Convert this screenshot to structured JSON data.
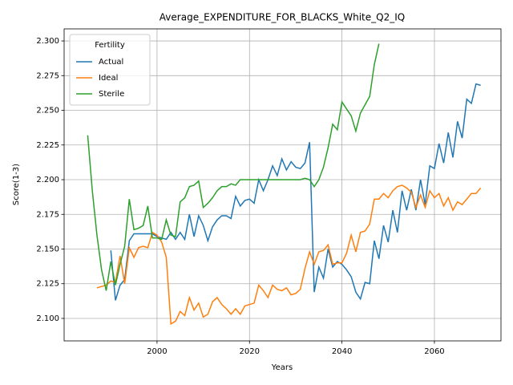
{
  "chart_data": {
    "type": "line",
    "title": "Average_EXPENDITURE_FOR_BLACKS_White_Q2_IQ",
    "x_label": "Years",
    "y_label": "Score(1-3)",
    "legend_title": "Fertility",
    "legend_position": "upper left",
    "grid": true,
    "x": [
      1985,
      1986,
      1987,
      1988,
      1989,
      1990,
      1991,
      1992,
      1993,
      1994,
      1995,
      1996,
      1997,
      1998,
      1999,
      2000,
      2001,
      2002,
      2003,
      2004,
      2005,
      2006,
      2007,
      2008,
      2009,
      2010,
      2011,
      2012,
      2013,
      2014,
      2015,
      2016,
      2017,
      2018,
      2019,
      2020,
      2021,
      2022,
      2023,
      2024,
      2025,
      2026,
      2027,
      2028,
      2029,
      2030,
      2031,
      2032,
      2033,
      2034,
      2035,
      2036,
      2037,
      2038,
      2039,
      2040,
      2041,
      2042,
      2043,
      2044,
      2045,
      2046,
      2047,
      2048,
      2049,
      2050,
      2051,
      2052,
      2053,
      2054,
      2055,
      2056,
      2057,
      2058,
      2059,
      2060,
      2061,
      2062,
      2063,
      2064,
      2065,
      2066,
      2067,
      2068,
      2069,
      2070
    ],
    "series": [
      {
        "name": "Actual",
        "color": "#1f77b4",
        "values": [
          null,
          null,
          null,
          null,
          null,
          2.149,
          2.113,
          2.124,
          2.128,
          2.156,
          2.161,
          2.161,
          2.161,
          2.161,
          2.161,
          2.159,
          2.158,
          2.157,
          2.162,
          2.157,
          2.162,
          2.157,
          2.175,
          2.159,
          2.174,
          2.167,
          2.156,
          2.166,
          2.171,
          2.174,
          2.174,
          2.172,
          2.188,
          2.181,
          2.185,
          2.186,
          2.183,
          2.2,
          2.192,
          2.2,
          2.21,
          2.203,
          2.215,
          2.207,
          2.213,
          2.209,
          2.208,
          2.212,
          2.227,
          2.119,
          2.137,
          2.129,
          2.15,
          2.137,
          2.141,
          2.139,
          2.135,
          2.13,
          2.119,
          2.114,
          2.126,
          2.125,
          2.156,
          2.143,
          2.167,
          2.155,
          2.178,
          2.162,
          2.192,
          2.178,
          2.193,
          2.178,
          2.2,
          2.182,
          2.21,
          2.208,
          2.226,
          2.212,
          2.234,
          2.216,
          2.242,
          2.23,
          2.258,
          2.255,
          2.269,
          2.268
        ]
      },
      {
        "name": "Ideal",
        "color": "#ff7f0e",
        "values": [
          null,
          null,
          2.122,
          2.123,
          2.124,
          2.127,
          2.126,
          2.145,
          2.125,
          2.151,
          2.144,
          2.151,
          2.152,
          2.151,
          2.162,
          2.16,
          2.155,
          2.144,
          2.096,
          2.098,
          2.105,
          2.102,
          2.115,
          2.106,
          2.111,
          2.101,
          2.103,
          2.112,
          2.115,
          2.11,
          2.107,
          2.103,
          2.107,
          2.103,
          2.109,
          2.11,
          2.111,
          2.124,
          2.12,
          2.115,
          2.124,
          2.121,
          2.12,
          2.122,
          2.117,
          2.118,
          2.121,
          2.136,
          2.148,
          2.139,
          2.148,
          2.149,
          2.153,
          2.139,
          2.14,
          2.14,
          2.147,
          2.16,
          2.148,
          2.162,
          2.163,
          2.168,
          2.186,
          2.186,
          2.19,
          2.187,
          2.192,
          2.195,
          2.196,
          2.194,
          2.191,
          2.18,
          2.189,
          2.18,
          2.192,
          2.187,
          2.19,
          2.181,
          2.187,
          2.178,
          2.184,
          2.182,
          2.186,
          2.19,
          2.19,
          2.194
        ]
      },
      {
        "name": "Sterile",
        "color": "#2ca02c",
        "values": [
          2.232,
          2.192,
          2.16,
          2.135,
          2.12,
          2.141,
          2.124,
          2.139,
          2.152,
          2.186,
          2.164,
          2.165,
          2.167,
          2.181,
          2.158,
          2.158,
          2.157,
          2.171,
          2.16,
          2.159,
          2.184,
          2.187,
          2.195,
          2.196,
          2.199,
          2.18,
          2.183,
          2.187,
          2.192,
          2.195,
          2.195,
          2.197,
          2.196,
          2.2,
          2.2,
          2.2,
          2.2,
          2.2,
          2.2,
          2.2,
          2.2,
          2.2,
          2.2,
          2.2,
          2.2,
          2.2,
          2.2,
          2.201,
          2.2,
          2.195,
          2.2,
          2.209,
          2.223,
          2.24,
          2.236,
          2.256,
          2.251,
          2.246,
          2.235,
          2.248,
          2.254,
          2.26,
          2.283,
          2.298,
          null,
          null,
          null,
          null,
          null,
          null,
          null,
          null,
          null,
          null,
          null,
          null,
          null,
          null,
          null,
          null,
          null,
          null,
          null,
          null,
          null,
          null
        ]
      }
    ],
    "xlim": [
      1979.9,
      2074.4
    ],
    "xticks": [
      2000,
      2020,
      2040,
      2060
    ],
    "ylim": [
      2.0838,
      2.3087
    ],
    "yticks": [
      {
        "value": 2.1,
        "label": "2.100"
      },
      {
        "value": 2.125,
        "label": "2.125"
      },
      {
        "value": 2.15,
        "label": "2.150"
      },
      {
        "value": 2.175,
        "label": "2.175"
      },
      {
        "value": 2.2,
        "label": "2.200"
      },
      {
        "value": 2.225,
        "label": "2.225"
      },
      {
        "value": 2.25,
        "label": "2.250"
      },
      {
        "value": 2.275,
        "label": "2.275"
      },
      {
        "value": 2.3,
        "label": "2.300"
      }
    ]
  }
}
